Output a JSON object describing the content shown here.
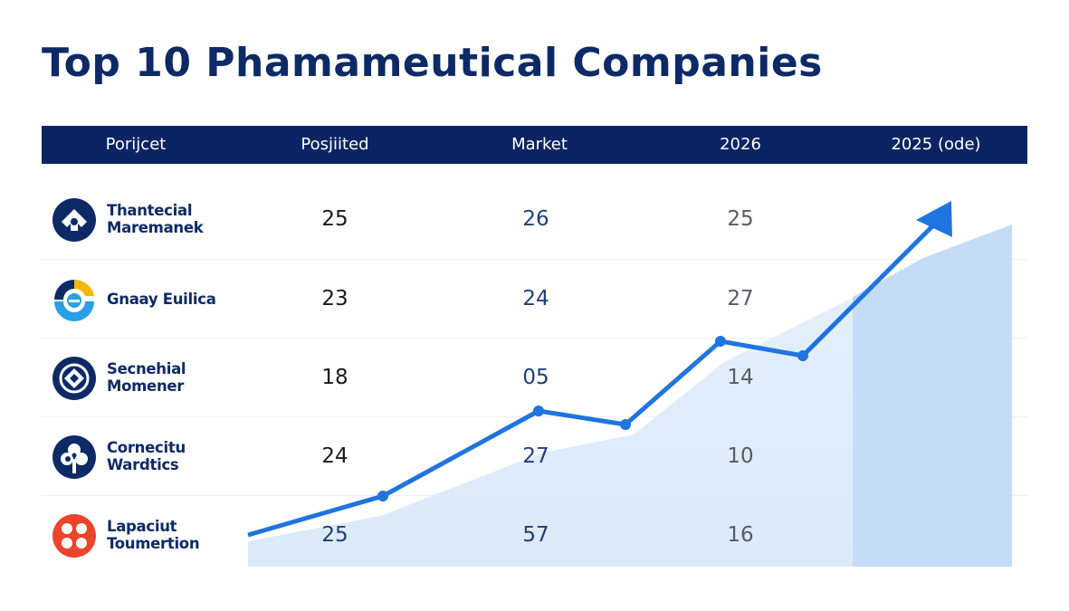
{
  "title": "Top 10 Phamameutical Companies",
  "columns": [
    "Porijcet",
    "Posjiited",
    "Market",
    "2026",
    "2025 (ode)"
  ],
  "rows": [
    {
      "name_line1": "Thantecial",
      "name_line2": "Maremanek",
      "logo": "house-keyhole-logo",
      "values": [
        "25",
        "26",
        "25"
      ]
    },
    {
      "name_line1": "Gnaay Euilica",
      "name_line2": "",
      "logo": "ring-segment-logo",
      "values": [
        "23",
        "24",
        "27"
      ]
    },
    {
      "name_line1": "Secnehial",
      "name_line2": "Momener",
      "logo": "diamond-ring-logo",
      "values": [
        "18",
        "05",
        "14"
      ]
    },
    {
      "name_line1": "Cornecitu",
      "name_line2": "Wardtics",
      "logo": "clover-logo",
      "values": [
        "24",
        "27",
        "10"
      ]
    },
    {
      "name_line1": "Lapaciut",
      "name_line2": "Toumertion",
      "logo": "cross-petal-logo",
      "values": [
        "25",
        "57",
        "16"
      ]
    }
  ],
  "colors": {
    "header": "#0a2463",
    "title": "#0d2a66",
    "trend_line": "#1f74e0",
    "area": "#dcebfb",
    "highlight_column": "#c4dcf7",
    "logo_navy": "#0d2a66",
    "logo_red": "#e8452c",
    "logo_yellow": "#f5b800",
    "logo_lightblue": "#29a0e8"
  },
  "chart_data": {
    "type": "table",
    "columns": [
      "Porijcet",
      "Posjiited",
      "Market",
      "2026",
      "2025 (ode)"
    ],
    "categories": [
      "Thantecial Maremanek",
      "Gnaay Euilica",
      "Secnehial Momener",
      "Cornecitu Wardtics",
      "Lapaciut Toumertion"
    ],
    "series": [
      {
        "name": "Posjiited",
        "values": [
          25,
          23,
          18,
          24,
          25
        ]
      },
      {
        "name": "Market",
        "values": [
          26,
          24,
          5,
          27,
          57
        ]
      },
      {
        "name": "2026",
        "values": [
          25,
          27,
          14,
          10,
          16
        ]
      }
    ],
    "overlay": "upward trend line with arrow and shaded area, unlabeled"
  }
}
